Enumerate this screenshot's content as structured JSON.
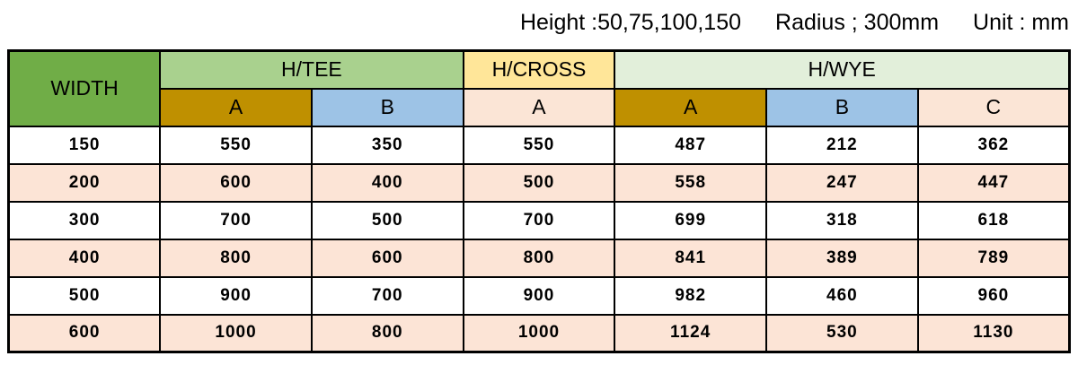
{
  "caption": {
    "height": "Height :50,75,100,150",
    "radius": "Radius ; 300mm",
    "unit": "Unit : mm"
  },
  "table": {
    "header": {
      "width_label": "WIDTH",
      "groups": [
        {
          "label": "H/TEE",
          "span": 2
        },
        {
          "label": "H/CROSS",
          "span": 1
        },
        {
          "label": "H/WYE",
          "span": 3
        }
      ],
      "sub": [
        "A",
        "B",
        "A",
        "A",
        "B",
        "C"
      ]
    },
    "rows": [
      {
        "width": "150",
        "values": [
          "550",
          "350",
          "550",
          "487",
          "212",
          "362"
        ]
      },
      {
        "width": "200",
        "values": [
          "600",
          "400",
          "500",
          "558",
          "247",
          "447"
        ]
      },
      {
        "width": "300",
        "values": [
          "700",
          "500",
          "700",
          "699",
          "318",
          "618"
        ]
      },
      {
        "width": "400",
        "values": [
          "800",
          "600",
          "800",
          "841",
          "389",
          "789"
        ]
      },
      {
        "width": "500",
        "values": [
          "900",
          "700",
          "900",
          "982",
          "460",
          "960"
        ]
      },
      {
        "width": "600",
        "values": [
          "1000",
          "800",
          "1000",
          "1124",
          "530",
          "1130"
        ]
      }
    ]
  },
  "colors": {
    "width_header_green": "#70ad47",
    "htee_light_green": "#a9d18e",
    "hcross_yellow": "#ffe699",
    "hwye_pale_green": "#e2efda",
    "sub_a_gold": "#bf9000",
    "sub_b_blue": "#9dc3e6",
    "sub_peach": "#fbe5d6",
    "alt_row_peach": "#fce4d6",
    "border": "#000000"
  },
  "chart_data": {
    "type": "table",
    "title": "Height :50,75,100,150 Radius ; 300mm Unit : mm",
    "column_groups": [
      {
        "label": "WIDTH",
        "columns": [
          "WIDTH"
        ]
      },
      {
        "label": "H/TEE",
        "columns": [
          "A",
          "B"
        ]
      },
      {
        "label": "H/CROSS",
        "columns": [
          "A"
        ]
      },
      {
        "label": "H/WYE",
        "columns": [
          "A",
          "B",
          "C"
        ]
      }
    ],
    "columns": [
      "WIDTH",
      "H/TEE A",
      "H/TEE B",
      "H/CROSS A",
      "H/WYE A",
      "H/WYE B",
      "H/WYE C"
    ],
    "rows": [
      [
        150,
        550,
        350,
        550,
        487,
        212,
        362
      ],
      [
        200,
        600,
        400,
        500,
        558,
        247,
        447
      ],
      [
        300,
        700,
        500,
        700,
        699,
        318,
        618
      ],
      [
        400,
        800,
        600,
        800,
        841,
        389,
        789
      ],
      [
        500,
        900,
        700,
        900,
        982,
        460,
        960
      ],
      [
        600,
        1000,
        800,
        1000,
        1124,
        530,
        1130
      ]
    ]
  }
}
